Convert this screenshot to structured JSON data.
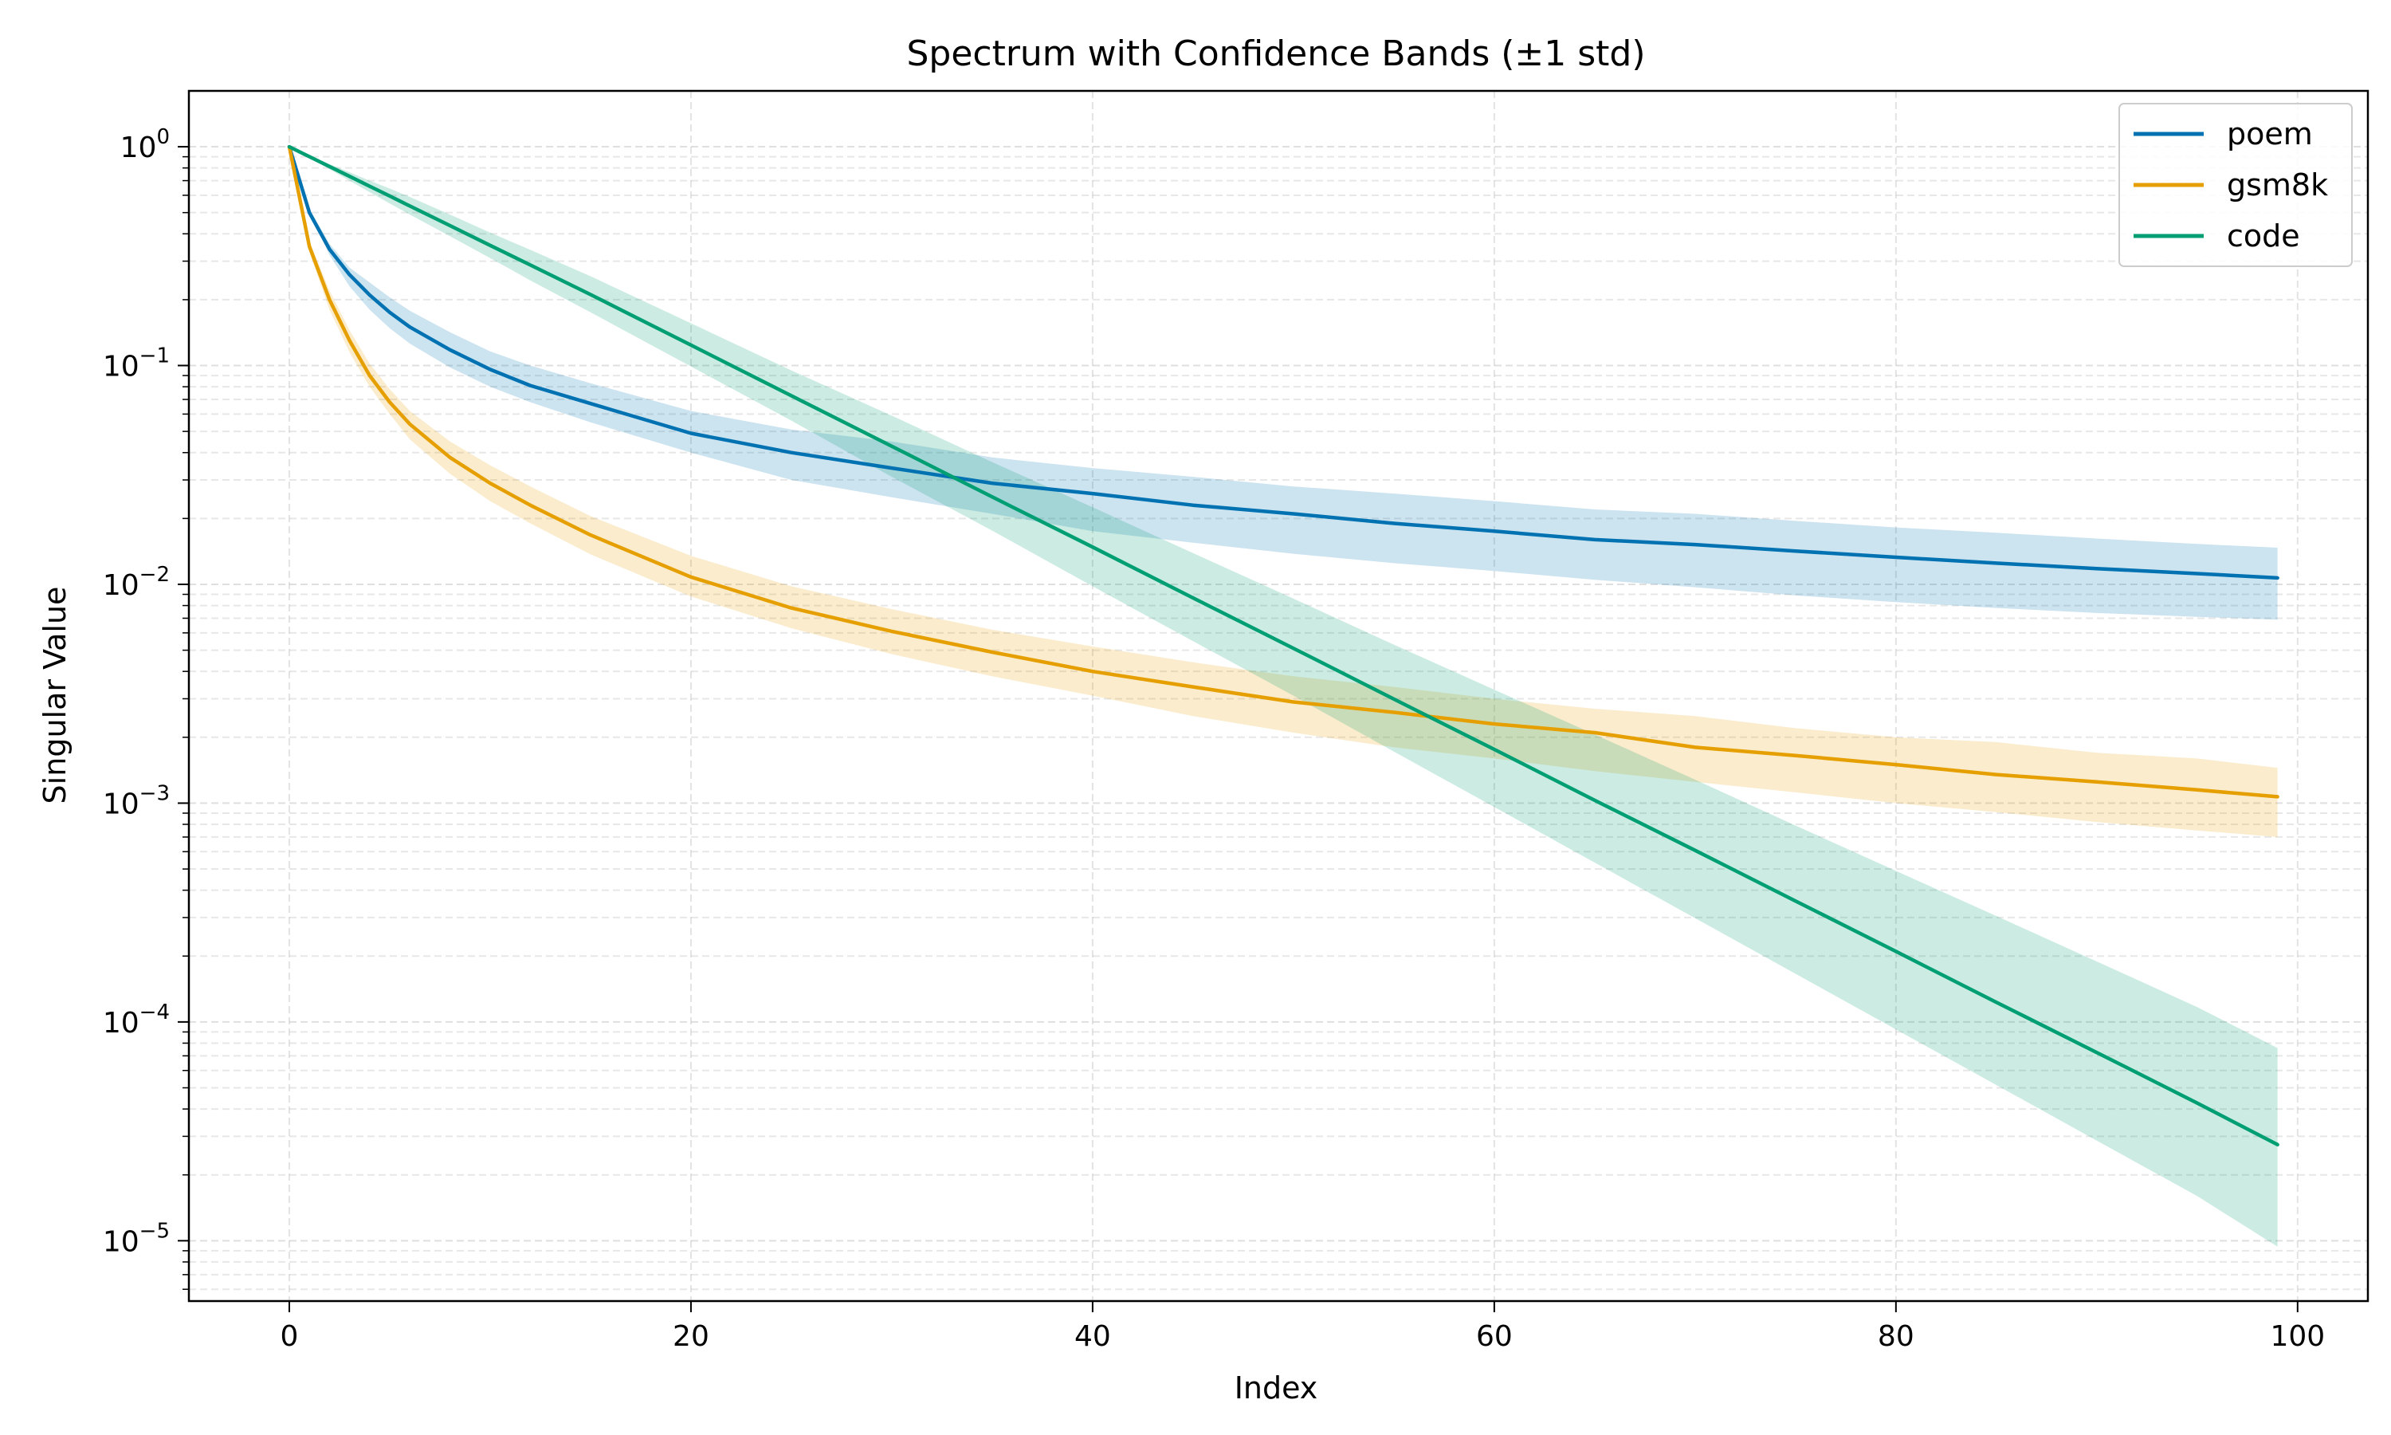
{
  "chart_data": {
    "type": "line",
    "title": "Spectrum with Confidence Bands (±1 std)",
    "xlabel": "Index",
    "ylabel": "Singular Value",
    "xlim": [
      -5,
      103.5
    ],
    "ylim": [
      5.3e-06,
      1.8
    ],
    "yscale": "log",
    "grid": true,
    "legend_position": "top-right",
    "x_ticks": [
      0,
      20,
      40,
      60,
      80,
      100
    ],
    "y_ticks": [
      {
        "value": 1,
        "base": "10",
        "exp": "0"
      },
      {
        "value": 0.1,
        "base": "10",
        "exp": "−1"
      },
      {
        "value": 0.01,
        "base": "10",
        "exp": "−2"
      },
      {
        "value": 0.001,
        "base": "10",
        "exp": "−3"
      },
      {
        "value": 0.0001,
        "base": "10",
        "exp": "−4"
      },
      {
        "value": 1e-05,
        "base": "10",
        "exp": "−5"
      }
    ],
    "x": [
      0,
      1,
      2,
      3,
      4,
      5,
      6,
      8,
      10,
      12,
      15,
      20,
      25,
      30,
      35,
      40,
      45,
      50,
      55,
      60,
      65,
      70,
      75,
      80,
      85,
      90,
      95,
      99
    ],
    "series": [
      {
        "name": "poem",
        "color": "#0072b2",
        "values": [
          1.0,
          0.5,
          0.34,
          0.26,
          0.21,
          0.175,
          0.15,
          0.118,
          0.096,
          0.081,
          0.067,
          0.049,
          0.04,
          0.034,
          0.029,
          0.026,
          0.023,
          0.021,
          0.019,
          0.0175,
          0.016,
          0.0152,
          0.0142,
          0.0133,
          0.0125,
          0.0118,
          0.0112,
          0.0107
        ],
        "lower": [
          1.0,
          0.5,
          0.32,
          0.23,
          0.18,
          0.148,
          0.126,
          0.098,
          0.08,
          0.068,
          0.055,
          0.04,
          0.03,
          0.025,
          0.021,
          0.0175,
          0.0155,
          0.0138,
          0.0125,
          0.0115,
          0.0105,
          0.0097,
          0.0089,
          0.0083,
          0.0078,
          0.0074,
          0.0071,
          0.0069
        ],
        "upper": [
          1.0,
          0.52,
          0.36,
          0.28,
          0.24,
          0.205,
          0.178,
          0.142,
          0.116,
          0.1,
          0.083,
          0.062,
          0.051,
          0.045,
          0.038,
          0.034,
          0.031,
          0.028,
          0.026,
          0.024,
          0.022,
          0.021,
          0.0195,
          0.0182,
          0.0172,
          0.0162,
          0.0153,
          0.0147
        ]
      },
      {
        "name": "gsm8k",
        "color": "#e69f00",
        "values": [
          1.0,
          0.35,
          0.2,
          0.13,
          0.09,
          0.068,
          0.054,
          0.038,
          0.029,
          0.023,
          0.0168,
          0.0108,
          0.0078,
          0.0061,
          0.0049,
          0.004,
          0.0034,
          0.0029,
          0.0026,
          0.0023,
          0.0021,
          0.0018,
          0.00165,
          0.0015,
          0.00135,
          0.00125,
          0.00115,
          0.00107
        ],
        "lower": [
          1.0,
          0.33,
          0.18,
          0.115,
          0.08,
          0.06,
          0.046,
          0.032,
          0.024,
          0.019,
          0.0137,
          0.0088,
          0.0063,
          0.0048,
          0.0038,
          0.0031,
          0.0025,
          0.0021,
          0.0018,
          0.0016,
          0.0014,
          0.00125,
          0.00112,
          0.001,
          0.00091,
          0.00082,
          0.00075,
          0.0007
        ],
        "upper": [
          1.0,
          0.37,
          0.22,
          0.145,
          0.102,
          0.078,
          0.062,
          0.045,
          0.035,
          0.028,
          0.0205,
          0.0135,
          0.0098,
          0.0077,
          0.0062,
          0.0052,
          0.0044,
          0.0038,
          0.0034,
          0.003,
          0.0027,
          0.0025,
          0.0022,
          0.002,
          0.0019,
          0.0017,
          0.0016,
          0.00145
        ]
      },
      {
        "name": "code",
        "color": "#009e73",
        "values": [
          1.0,
          0.901,
          0.812,
          0.732,
          0.66,
          0.595,
          0.536,
          0.436,
          0.354,
          0.288,
          0.211,
          0.124,
          0.0728,
          0.0428,
          0.0251,
          0.0148,
          0.00867,
          0.0051,
          0.00299,
          0.00176,
          0.00103,
          0.000608,
          0.000357,
          0.00021,
          0.000123,
          7.25e-05,
          4.26e-05,
          2.75e-05
        ],
        "lower": [
          1.0,
          0.89,
          0.79,
          0.7,
          0.62,
          0.55,
          0.49,
          0.39,
          0.31,
          0.245,
          0.175,
          0.099,
          0.056,
          0.031,
          0.0176,
          0.0098,
          0.0055,
          0.0031,
          0.00172,
          0.00096,
          0.000535,
          0.000298,
          0.000166,
          9.25e-05,
          5.15e-05,
          2.87e-05,
          1.6e-05,
          9.4e-06
        ],
        "upper": [
          1.0,
          0.912,
          0.834,
          0.765,
          0.7,
          0.644,
          0.59,
          0.49,
          0.405,
          0.338,
          0.256,
          0.156,
          0.095,
          0.059,
          0.0362,
          0.0225,
          0.0139,
          0.0086,
          0.0053,
          0.0033,
          0.00206,
          0.00128,
          0.00079,
          0.00049,
          0.000305,
          0.000189,
          0.000117,
          7.6e-05
        ]
      }
    ]
  }
}
